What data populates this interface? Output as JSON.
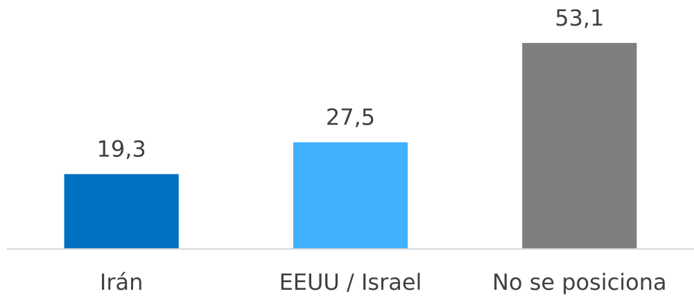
{
  "chart_data": {
    "type": "bar",
    "categories": [
      "Irán",
      "EEUU / Israel",
      "No se posiciona"
    ],
    "values": [
      19.3,
      27.5,
      53.1
    ],
    "value_labels": [
      "19,3",
      "27,5",
      "53,1"
    ],
    "colors": [
      "#0070c0",
      "#41b0ff",
      "#7f7f7f"
    ],
    "ylim": [
      0,
      60
    ]
  }
}
